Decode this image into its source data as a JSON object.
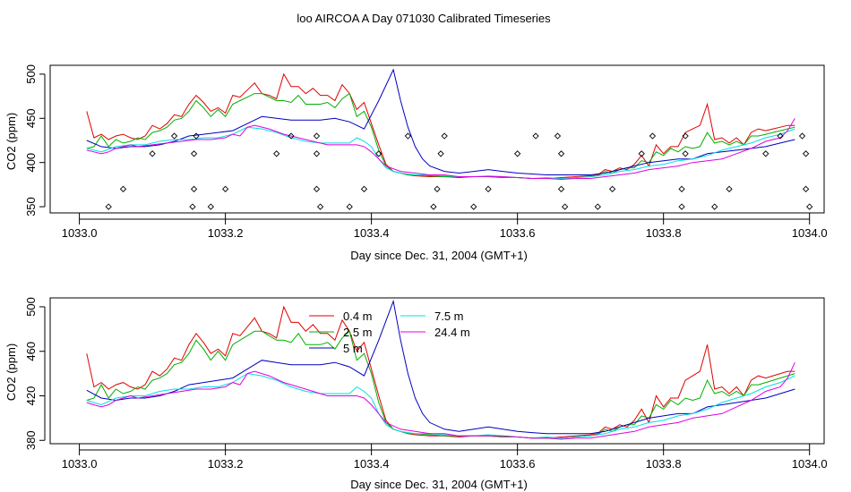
{
  "title": "loo AIRCOA A  Day 071030  Calibrated Timeseries",
  "chart_data": [
    {
      "type": "scatter",
      "title": "",
      "xlabel": "Day since Dec. 31, 2004 (GMT+1)",
      "ylabel": "CO2 (ppm)",
      "xlim": [
        1032.96,
        1034.02
      ],
      "ylim": [
        343,
        510
      ],
      "xticks": [
        1033.0,
        1033.2,
        1033.4,
        1033.6,
        1033.8,
        1034.0
      ],
      "xtick_labels": [
        "1033.0",
        "1033.2",
        "1033.4",
        "1033.6",
        "1033.8",
        "1034.0"
      ],
      "yticks": [
        350,
        400,
        450,
        500
      ],
      "ytick_labels": [
        "350",
        "400",
        "450",
        "500"
      ],
      "grid": false,
      "series_ref": "shared",
      "markers": {
        "name": "flag markers",
        "style": "open diamond",
        "points": [
          [
            1033.04,
            350
          ],
          [
            1033.06,
            370
          ],
          [
            1033.1,
            410
          ],
          [
            1033.13,
            430
          ],
          [
            1033.155,
            350
          ],
          [
            1033.157,
            370
          ],
          [
            1033.157,
            410
          ],
          [
            1033.16,
            430
          ],
          [
            1033.18,
            350
          ],
          [
            1033.2,
            370
          ],
          [
            1033.27,
            410
          ],
          [
            1033.29,
            430
          ],
          [
            1033.325,
            430
          ],
          [
            1033.325,
            410
          ],
          [
            1033.325,
            370
          ],
          [
            1033.33,
            350
          ],
          [
            1033.37,
            350
          ],
          [
            1033.39,
            370
          ],
          [
            1033.41,
            410
          ],
          [
            1033.45,
            430
          ],
          [
            1033.485,
            350
          ],
          [
            1033.49,
            370
          ],
          [
            1033.495,
            410
          ],
          [
            1033.5,
            430
          ],
          [
            1033.54,
            350
          ],
          [
            1033.56,
            370
          ],
          [
            1033.6,
            410
          ],
          [
            1033.625,
            430
          ],
          [
            1033.655,
            430
          ],
          [
            1033.66,
            410
          ],
          [
            1033.66,
            370
          ],
          [
            1033.665,
            350
          ],
          [
            1033.71,
            350
          ],
          [
            1033.73,
            370
          ],
          [
            1033.77,
            410
          ],
          [
            1033.785,
            430
          ],
          [
            1033.825,
            350
          ],
          [
            1033.825,
            370
          ],
          [
            1033.83,
            410
          ],
          [
            1033.83,
            430
          ],
          [
            1033.87,
            350
          ],
          [
            1033.89,
            370
          ],
          [
            1033.94,
            410
          ],
          [
            1033.96,
            430
          ],
          [
            1033.99,
            430
          ],
          [
            1033.995,
            410
          ],
          [
            1033.995,
            370
          ],
          [
            1034.0,
            350
          ]
        ]
      }
    },
    {
      "type": "line",
      "title": "",
      "xlabel": "Day since Dec. 31, 2004 (GMT+1)",
      "ylabel": "CO2 (ppm)",
      "xlim": [
        1032.96,
        1034.02
      ],
      "ylim": [
        377,
        508
      ],
      "xticks": [
        1033.0,
        1033.2,
        1033.4,
        1033.6,
        1033.8,
        1034.0
      ],
      "xtick_labels": [
        "1033.0",
        "1033.2",
        "1033.4",
        "1033.6",
        "1033.8",
        "1034.0"
      ],
      "yticks": [
        380,
        420,
        460,
        500
      ],
      "ytick_labels": [
        "380",
        "420",
        "460",
        "500"
      ],
      "grid": false,
      "legend_position": "top-center",
      "legend": [
        {
          "label": "0.4 m",
          "color": "#e00000"
        },
        {
          "label": "2.5 m",
          "color": "#00b000"
        },
        {
          "label": "5 m",
          "color": "#0000c0"
        },
        {
          "label": "7.5 m",
          "color": "#00e0e0"
        },
        {
          "label": "24.4 m",
          "color": "#e000e0"
        }
      ],
      "series_ref": "shared"
    }
  ],
  "series": [
    {
      "name": "0.4 m",
      "color": "#e00000",
      "x": [
        1033.01,
        1033.02,
        1033.03,
        1033.04,
        1033.05,
        1033.06,
        1033.07,
        1033.08,
        1033.09,
        1033.1,
        1033.11,
        1033.12,
        1033.13,
        1033.14,
        1033.15,
        1033.16,
        1033.17,
        1033.18,
        1033.19,
        1033.2,
        1033.21,
        1033.22,
        1033.23,
        1033.24,
        1033.25,
        1033.26,
        1033.27,
        1033.28,
        1033.29,
        1033.3,
        1033.31,
        1033.32,
        1033.33,
        1033.34,
        1033.35,
        1033.36,
        1033.37,
        1033.38,
        1033.39,
        1033.4,
        1033.41,
        1033.42,
        1033.43,
        1033.44,
        1033.45,
        1033.46,
        1033.48,
        1033.5,
        1033.52,
        1033.54,
        1033.56,
        1033.58,
        1033.6,
        1033.62,
        1033.64,
        1033.66,
        1033.68,
        1033.7,
        1033.71,
        1033.72,
        1033.73,
        1033.74,
        1033.75,
        1033.76,
        1033.77,
        1033.78,
        1033.79,
        1033.8,
        1033.81,
        1033.82,
        1033.83,
        1033.84,
        1033.85,
        1033.86,
        1033.87,
        1033.88,
        1033.89,
        1033.9,
        1033.91,
        1033.92,
        1033.93,
        1033.94,
        1033.95,
        1033.96,
        1033.97,
        1033.98
      ],
      "y": [
        458,
        428,
        432,
        426,
        430,
        432,
        428,
        426,
        430,
        442,
        438,
        444,
        454,
        452,
        466,
        476,
        468,
        458,
        462,
        456,
        476,
        474,
        482,
        490,
        478,
        476,
        472,
        500,
        486,
        486,
        478,
        484,
        476,
        476,
        470,
        488,
        478,
        460,
        468,
        444,
        420,
        398,
        390,
        388,
        386,
        385,
        384,
        384,
        383,
        384,
        384,
        383,
        383,
        382,
        382,
        383,
        384,
        385,
        386,
        392,
        390,
        394,
        392,
        398,
        408,
        396,
        420,
        410,
        418,
        418,
        434,
        438,
        442,
        466,
        426,
        428,
        422,
        428,
        420,
        434,
        438,
        436,
        438,
        440,
        442,
        442
      ]
    },
    {
      "name": "2.5 m",
      "color": "#00b000",
      "x": [
        1033.01,
        1033.02,
        1033.03,
        1033.04,
        1033.05,
        1033.06,
        1033.07,
        1033.08,
        1033.09,
        1033.1,
        1033.11,
        1033.12,
        1033.13,
        1033.14,
        1033.15,
        1033.16,
        1033.17,
        1033.18,
        1033.19,
        1033.2,
        1033.21,
        1033.22,
        1033.23,
        1033.24,
        1033.25,
        1033.26,
        1033.27,
        1033.28,
        1033.29,
        1033.3,
        1033.31,
        1033.32,
        1033.33,
        1033.34,
        1033.35,
        1033.36,
        1033.37,
        1033.38,
        1033.39,
        1033.4,
        1033.41,
        1033.42,
        1033.43,
        1033.44,
        1033.45,
        1033.46,
        1033.48,
        1033.5,
        1033.52,
        1033.54,
        1033.56,
        1033.58,
        1033.6,
        1033.62,
        1033.64,
        1033.66,
        1033.68,
        1033.7,
        1033.71,
        1033.72,
        1033.73,
        1033.74,
        1033.75,
        1033.76,
        1033.77,
        1033.78,
        1033.79,
        1033.8,
        1033.81,
        1033.82,
        1033.83,
        1033.84,
        1033.85,
        1033.86,
        1033.87,
        1033.88,
        1033.89,
        1033.9,
        1033.91,
        1033.92,
        1033.93,
        1033.94,
        1033.95,
        1033.96,
        1033.97,
        1033.98
      ],
      "y": [
        416,
        418,
        430,
        418,
        426,
        422,
        424,
        428,
        426,
        434,
        436,
        440,
        448,
        450,
        458,
        470,
        462,
        452,
        460,
        452,
        466,
        470,
        474,
        478,
        478,
        474,
        470,
        470,
        468,
        476,
        466,
        466,
        466,
        468,
        462,
        472,
        478,
        452,
        458,
        440,
        414,
        396,
        390,
        388,
        386,
        386,
        385,
        384,
        384,
        384,
        384,
        383,
        383,
        382,
        382,
        382,
        383,
        384,
        385,
        390,
        388,
        392,
        394,
        394,
        402,
        400,
        412,
        408,
        416,
        412,
        418,
        416,
        418,
        434,
        422,
        424,
        420,
        424,
        420,
        430,
        430,
        432,
        434,
        436,
        438,
        440
      ]
    },
    {
      "name": "5 m",
      "color": "#0000c0",
      "x": [
        1033.01,
        1033.03,
        1033.05,
        1033.07,
        1033.09,
        1033.11,
        1033.13,
        1033.15,
        1033.17,
        1033.19,
        1033.21,
        1033.23,
        1033.25,
        1033.27,
        1033.29,
        1033.31,
        1033.33,
        1033.35,
        1033.37,
        1033.39,
        1033.41,
        1033.43,
        1033.44,
        1033.45,
        1033.46,
        1033.47,
        1033.48,
        1033.5,
        1033.52,
        1033.54,
        1033.56,
        1033.58,
        1033.6,
        1033.62,
        1033.64,
        1033.66,
        1033.68,
        1033.7,
        1033.72,
        1033.74,
        1033.76,
        1033.78,
        1033.8,
        1033.82,
        1033.84,
        1033.86,
        1033.88,
        1033.9,
        1033.92,
        1033.94,
        1033.96,
        1033.98
      ],
      "y": [
        425,
        418,
        416,
        418,
        418,
        420,
        424,
        430,
        432,
        434,
        436,
        444,
        452,
        450,
        448,
        448,
        448,
        450,
        446,
        438,
        470,
        505,
        470,
        440,
        418,
        404,
        396,
        390,
        388,
        390,
        392,
        390,
        388,
        387,
        386,
        386,
        386,
        386,
        388,
        392,
        396,
        400,
        402,
        404,
        404,
        410,
        412,
        414,
        416,
        418,
        422,
        426
      ]
    },
    {
      "name": "7.5 m",
      "color": "#00e0e0",
      "x": [
        1033.01,
        1033.03,
        1033.05,
        1033.07,
        1033.09,
        1033.11,
        1033.13,
        1033.15,
        1033.17,
        1033.19,
        1033.21,
        1033.23,
        1033.25,
        1033.27,
        1033.29,
        1033.31,
        1033.33,
        1033.35,
        1033.37,
        1033.38,
        1033.39,
        1033.4,
        1033.41,
        1033.42,
        1033.43,
        1033.44,
        1033.46,
        1033.48,
        1033.5,
        1033.52,
        1033.54,
        1033.56,
        1033.58,
        1033.6,
        1033.62,
        1033.64,
        1033.66,
        1033.68,
        1033.7,
        1033.72,
        1033.74,
        1033.76,
        1033.78,
        1033.8,
        1033.82,
        1033.84,
        1033.86,
        1033.88,
        1033.9,
        1033.92,
        1033.94,
        1033.96,
        1033.98
      ],
      "y": [
        416,
        412,
        418,
        420,
        420,
        424,
        426,
        426,
        428,
        428,
        432,
        440,
        438,
        434,
        428,
        424,
        422,
        422,
        422,
        428,
        424,
        418,
        404,
        394,
        390,
        388,
        386,
        386,
        385,
        384,
        384,
        385,
        384,
        383,
        382,
        383,
        382,
        383,
        384,
        386,
        390,
        392,
        396,
        398,
        402,
        404,
        408,
        414,
        418,
        422,
        428,
        432,
        438
      ]
    },
    {
      "name": "24.4 m",
      "color": "#e000e0",
      "x": [
        1033.01,
        1033.02,
        1033.03,
        1033.04,
        1033.05,
        1033.06,
        1033.07,
        1033.08,
        1033.1,
        1033.12,
        1033.14,
        1033.16,
        1033.18,
        1033.2,
        1033.21,
        1033.22,
        1033.23,
        1033.24,
        1033.26,
        1033.28,
        1033.3,
        1033.32,
        1033.34,
        1033.36,
        1033.38,
        1033.39,
        1033.4,
        1033.41,
        1033.42,
        1033.44,
        1033.46,
        1033.48,
        1033.5,
        1033.52,
        1033.54,
        1033.56,
        1033.58,
        1033.6,
        1033.62,
        1033.64,
        1033.66,
        1033.68,
        1033.7,
        1033.72,
        1033.74,
        1033.76,
        1033.78,
        1033.8,
        1033.82,
        1033.84,
        1033.86,
        1033.88,
        1033.9,
        1033.92,
        1033.94,
        1033.96,
        1033.97,
        1033.98
      ],
      "y": [
        414,
        412,
        410,
        412,
        416,
        418,
        420,
        418,
        420,
        422,
        424,
        426,
        426,
        428,
        432,
        430,
        440,
        442,
        438,
        432,
        428,
        424,
        420,
        420,
        420,
        418,
        412,
        404,
        396,
        390,
        388,
        386,
        386,
        384,
        384,
        384,
        384,
        383,
        382,
        382,
        381,
        382,
        382,
        384,
        386,
        388,
        392,
        394,
        396,
        400,
        402,
        404,
        410,
        416,
        424,
        428,
        436,
        450
      ]
    }
  ]
}
